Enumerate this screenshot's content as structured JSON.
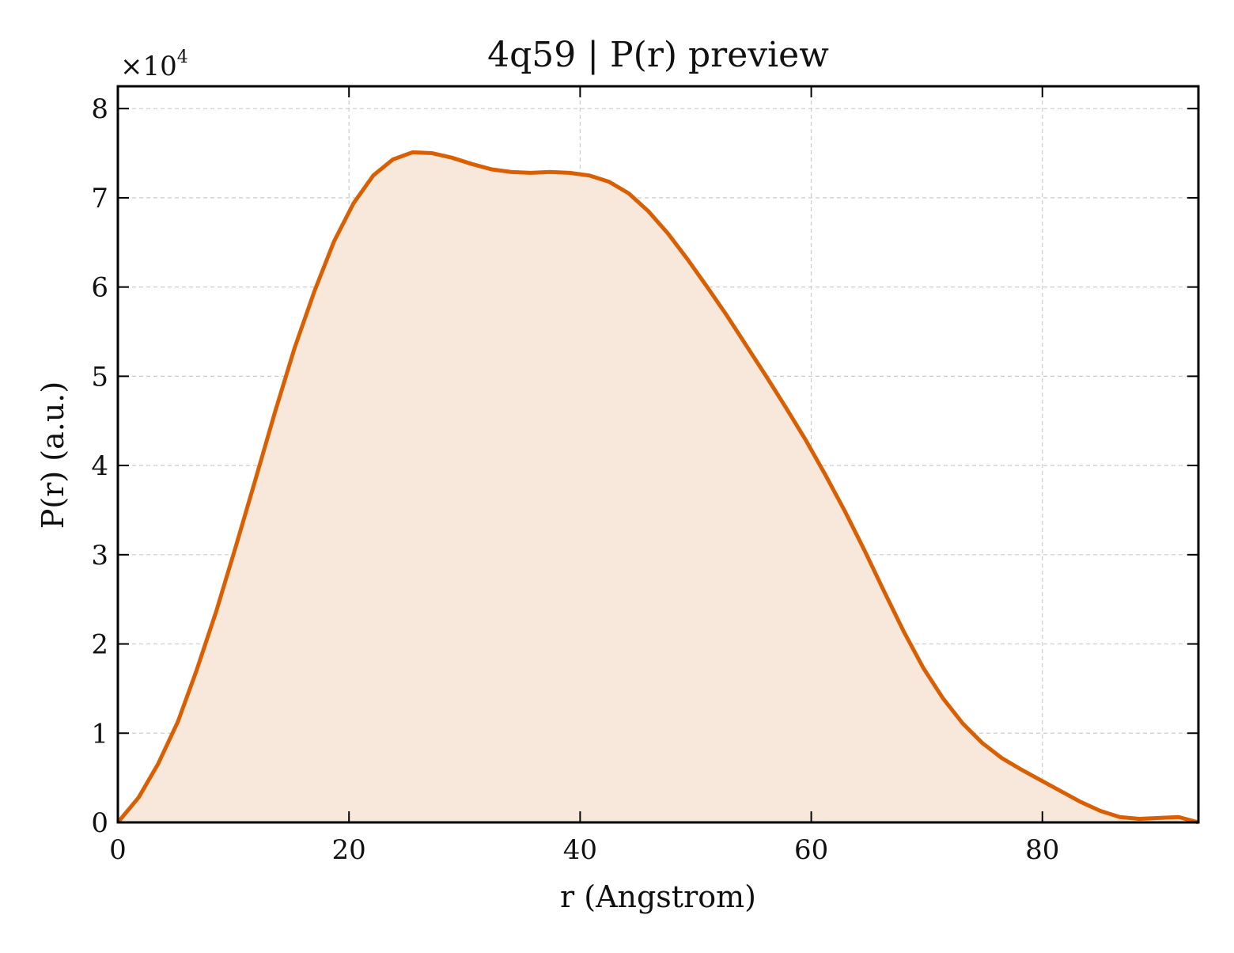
{
  "chart_data": {
    "type": "area",
    "title": "4q59 | P(r) preview",
    "xlabel": "r (Angstrom)",
    "ylabel": "P(r) (a.u.)",
    "y_multiplier_base": "×10",
    "y_multiplier_exp": "4",
    "xlim": [
      0,
      93.5
    ],
    "ylim": [
      0,
      8.25
    ],
    "x_ticks": [
      0,
      20,
      40,
      60,
      80
    ],
    "y_ticks": [
      0,
      1,
      2,
      3,
      4,
      5,
      6,
      7,
      8
    ],
    "x_tick_labels": [
      "0",
      "20",
      "40",
      "60",
      "80"
    ],
    "y_tick_labels": [
      "0",
      "1",
      "2",
      "3",
      "4",
      "5",
      "6",
      "7",
      "8"
    ],
    "grid": true,
    "line_color": "#d95f02",
    "fill_color": "#f8e8dc",
    "x": [
      0,
      1.8,
      3.5,
      5.2,
      6.8,
      8.5,
      10.2,
      11.9,
      13.6,
      15.3,
      17.0,
      18.7,
      20.4,
      22.1,
      23.8,
      25.5,
      27.2,
      28.9,
      30.6,
      32.3,
      34.0,
      35.7,
      37.4,
      39.1,
      40.8,
      42.5,
      44.2,
      45.9,
      47.6,
      49.3,
      51.0,
      52.7,
      54.4,
      56.1,
      57.8,
      59.5,
      61.2,
      62.9,
      64.6,
      66.3,
      68.0,
      69.7,
      71.4,
      73.1,
      74.8,
      76.5,
      78.2,
      79.9,
      81.6,
      83.3,
      85.0,
      86.7,
      88.4,
      90.1,
      91.8,
      93.5
    ],
    "y": [
      0.0,
      0.28,
      0.66,
      1.13,
      1.7,
      2.36,
      3.09,
      3.84,
      4.6,
      5.32,
      5.95,
      6.51,
      6.94,
      7.25,
      7.43,
      7.51,
      7.5,
      7.45,
      7.38,
      7.32,
      7.29,
      7.28,
      7.29,
      7.28,
      7.25,
      7.18,
      7.05,
      6.85,
      6.6,
      6.31,
      6.0,
      5.68,
      5.34,
      5.0,
      4.65,
      4.29,
      3.9,
      3.49,
      3.05,
      2.59,
      2.14,
      1.73,
      1.39,
      1.11,
      0.89,
      0.72,
      0.59,
      0.47,
      0.35,
      0.23,
      0.13,
      0.06,
      0.04,
      0.05,
      0.06,
      0.0
    ]
  }
}
